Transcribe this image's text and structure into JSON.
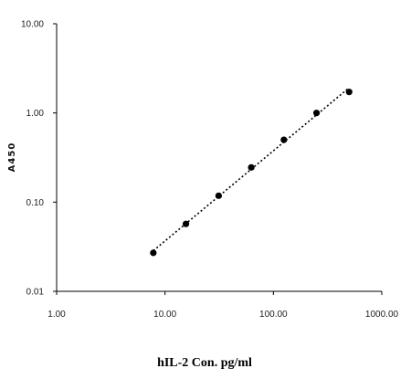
{
  "chart_data": {
    "type": "scatter",
    "title": "",
    "xlabel": "hIL-2 Con. pg/ml",
    "ylabel": "A450",
    "x_scale": "log",
    "y_scale": "log",
    "xlim": [
      1,
      1000
    ],
    "ylim": [
      0.01,
      10
    ],
    "x_ticks": [
      1,
      10,
      100,
      1000
    ],
    "x_tick_labels": [
      "1.00",
      "10.00",
      "100.00",
      "1000.00"
    ],
    "y_ticks": [
      0.01,
      0.1,
      1,
      10
    ],
    "y_tick_labels": [
      "0.01",
      "0.10",
      "1.00",
      "10.00"
    ],
    "grid": false,
    "legend": "none",
    "series": [
      {
        "x": [
          7.8,
          15.6,
          31.25,
          62.5,
          125,
          250,
          500
        ],
        "y": [
          0.027,
          0.057,
          0.118,
          0.245,
          0.5,
          1.0,
          1.72
        ],
        "marker": "circle",
        "trendline": "dotted"
      }
    ],
    "colors": {
      "marker": "#000000",
      "axis": "#000000",
      "trendline": "#000000"
    }
  }
}
